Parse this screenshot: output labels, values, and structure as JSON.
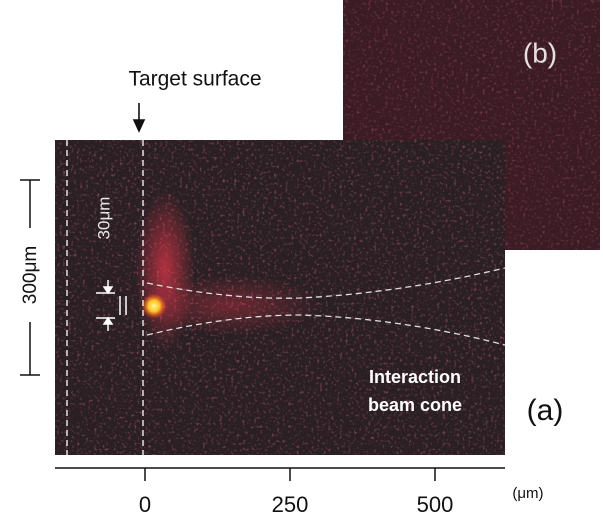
{
  "labels": {
    "target_surface": "Target surface",
    "vertical_scale": "300μm",
    "gap": "30μm",
    "cone_line1": "Interaction",
    "cone_line2": "beam cone",
    "panel_a": "(a)",
    "panel_b": "(b)"
  },
  "axis": {
    "ticks": [
      0,
      250,
      500
    ],
    "unit": "(μm)"
  }
}
